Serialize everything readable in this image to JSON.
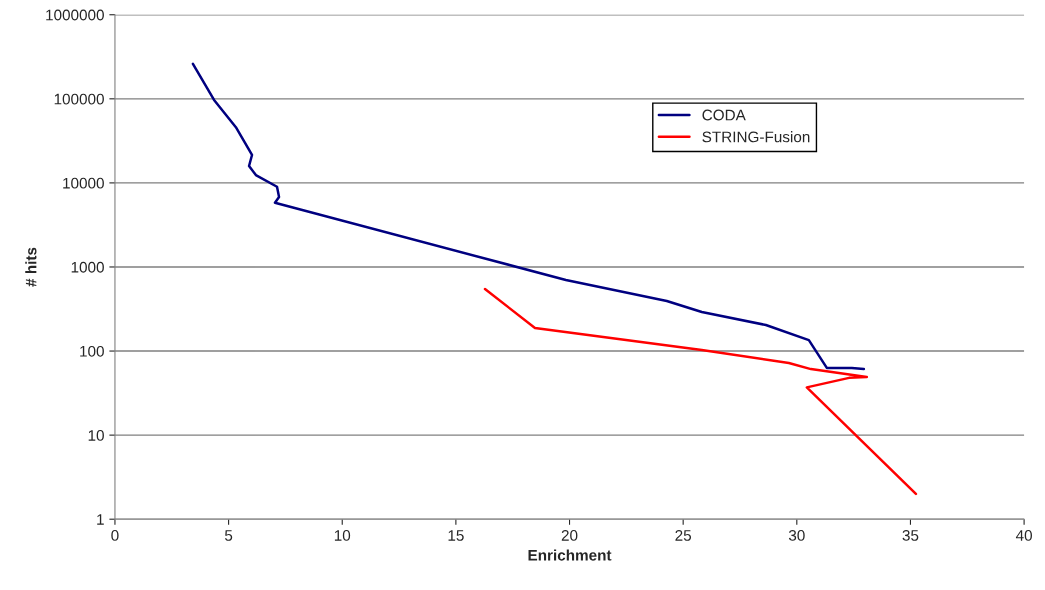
{
  "chart_data": {
    "type": "line",
    "xlabel": "Enrichment",
    "ylabel": "# hits",
    "log": "y",
    "xlim": [
      0,
      40
    ],
    "xticks": [
      0,
      5,
      10,
      15,
      20,
      25,
      30,
      35,
      40
    ],
    "ylim": [
      1,
      1000000
    ],
    "yticks": [
      1,
      10,
      100,
      1000,
      10000,
      100000,
      1000000
    ],
    "grid": "y",
    "legend": "top right",
    "marker": "none",
    "line_style": "solid",
    "series": [
      {
        "name": "CODA",
        "color": "#000080",
        "x": [
          3.43,
          4.36,
          5.32,
          6.03,
          5.9,
          6.2,
          7.13,
          7.22,
          7.04,
          19.84,
          24.28,
          25.82,
          28.64,
          30.53,
          31.32,
          32.42,
          32.95
        ],
        "values": [
          261000,
          97000,
          46000,
          21500,
          15900,
          12400,
          9000,
          6800,
          5800,
          700,
          394,
          291,
          204,
          135,
          63,
          63,
          61
        ]
      },
      {
        "name": "STRING-Fusion",
        "color": "#ff0000",
        "x": [
          16.28,
          18.48,
          25.82,
          29.65,
          30.62,
          33.08,
          32.3,
          30.44,
          35.24
        ],
        "values": [
          547,
          188,
          103,
          72,
          61,
          49,
          48,
          37,
          2
        ]
      }
    ]
  }
}
